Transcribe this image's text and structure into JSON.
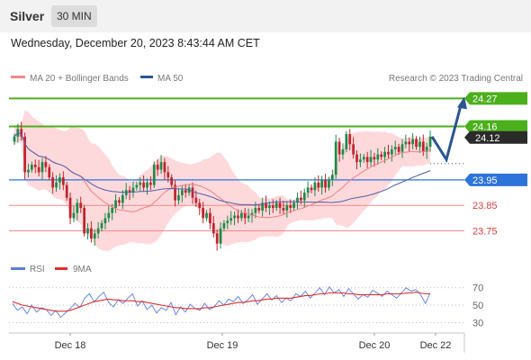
{
  "header": {
    "asset": "Silver",
    "timeframe": "30 MIN"
  },
  "datetime": "Wednesday, December 20, 2023 8:43:44 AM CET",
  "legend": {
    "ma20": "MA 20 + Bollinger Bands",
    "ma50": "MA 50",
    "source": "Research © 2023 Trading Central"
  },
  "rsi_legend": {
    "rsi": "RSI",
    "ma": "9MA"
  },
  "colors": {
    "up": "#1e8a4a",
    "down": "#c0232b",
    "bollinger": "#fdd9dc",
    "ma20": "#f08080",
    "ma50": "#4f5fa8",
    "resistance": "#4caf1c",
    "support": "#f08a8a",
    "pivot": "#2d74da",
    "arrow": "#2a5590",
    "rsi": "#5a7ed8",
    "rsi_ma": "#e02d2d"
  },
  "chart_data": {
    "type": "candlestick",
    "ylim": [
      23.66,
      24.31
    ],
    "x_ticks": [
      "Dec 18",
      "Dec 19",
      "Dec 20",
      "Dec 22"
    ],
    "levels": [
      {
        "label": "24.27",
        "value": 24.27,
        "kind": "resistance"
      },
      {
        "label": "24.16",
        "value": 24.16,
        "kind": "resistance"
      },
      {
        "label": "23.95",
        "value": 23.95,
        "kind": "pivot"
      },
      {
        "label": "23.85",
        "value": 23.85,
        "kind": "support"
      },
      {
        "label": "23.75",
        "value": 23.75,
        "kind": "support"
      }
    ],
    "last_price": {
      "label": "24.12",
      "value": 24.12
    },
    "forecast_path": [
      24.12,
      24.03,
      24.27
    ],
    "close_series": [
      24.12,
      24.15,
      24.12,
      23.98,
      23.99,
      24.01,
      24.0,
      23.98,
      24.02,
      24.0,
      23.96,
      23.92,
      23.94,
      23.96,
      23.93,
      23.88,
      23.8,
      23.82,
      23.86,
      23.84,
      23.74,
      23.76,
      23.72,
      23.74,
      23.76,
      23.78,
      23.8,
      23.82,
      23.84,
      23.87,
      23.86,
      23.89,
      23.91,
      23.9,
      23.92,
      23.93,
      23.94,
      23.92,
      23.94,
      23.93,
      24.01,
      23.99,
      24.02,
      23.98,
      23.96,
      23.93,
      23.87,
      23.89,
      23.91,
      23.9,
      23.92,
      23.88,
      23.86,
      23.84,
      23.8,
      23.82,
      23.78,
      23.74,
      23.7,
      23.76,
      23.78,
      23.79,
      23.8,
      23.81,
      23.8,
      23.82,
      23.8,
      23.81,
      23.82,
      23.84,
      23.83,
      23.86,
      23.84,
      23.85,
      23.84,
      23.86,
      23.84,
      23.83,
      23.85,
      23.84,
      23.86,
      23.88,
      23.87,
      23.9,
      23.92,
      23.91,
      23.94,
      23.92,
      23.95,
      23.92,
      23.95,
      23.97,
      24.1,
      24.05,
      24.07,
      24.13,
      24.09,
      24.05,
      24.02,
      24.03,
      24.04,
      24.02,
      24.04,
      24.03,
      24.05,
      24.04,
      24.06,
      24.05,
      24.07,
      24.08,
      24.06,
      24.09,
      24.1,
      24.09,
      24.11,
      24.08,
      24.1,
      24.06,
      24.08,
      24.12
    ],
    "rsi": {
      "levels": [
        70,
        50,
        30
      ],
      "ylim": [
        20,
        78
      ],
      "series": [
        {
          "name": "RSI",
          "values": [
            52,
            44,
            48,
            40,
            50,
            42,
            47,
            45,
            38,
            44,
            36,
            41,
            46,
            52,
            47,
            58,
            63,
            54,
            60,
            65,
            53,
            48,
            56,
            52,
            58,
            63,
            49,
            55,
            45,
            50,
            41,
            47,
            44,
            53,
            39,
            48,
            42,
            51,
            46,
            44,
            52,
            45,
            48,
            55,
            50,
            57,
            54,
            60,
            52,
            56,
            62,
            51,
            57,
            63,
            56,
            61,
            53,
            58,
            55,
            63,
            60,
            66,
            58,
            64,
            70,
            62,
            71,
            64,
            68,
            60,
            69,
            63,
            57,
            62,
            59,
            67,
            64,
            60,
            66,
            62,
            58,
            64,
            70,
            66,
            68,
            62,
            52,
            64
          ]
        },
        {
          "name": "9MA",
          "values": [
            54,
            52,
            50,
            49,
            48,
            47,
            46,
            45,
            44,
            43,
            43,
            43,
            44,
            46,
            48,
            50,
            52,
            54,
            55,
            56,
            57,
            56,
            56,
            55,
            55,
            55,
            54,
            54,
            53,
            52,
            51,
            50,
            49,
            48,
            47,
            47,
            46,
            46,
            46,
            46,
            47,
            47,
            48,
            49,
            50,
            51,
            52,
            53,
            53,
            54,
            55,
            55,
            56,
            57,
            57,
            58,
            58,
            58,
            58,
            59,
            60,
            61,
            61,
            62,
            63,
            63,
            64,
            64,
            64,
            64,
            63,
            63,
            62,
            62,
            62,
            62,
            62,
            62,
            63,
            63,
            63,
            63,
            64,
            64,
            65,
            64,
            63,
            63
          ]
        }
      ]
    }
  }
}
